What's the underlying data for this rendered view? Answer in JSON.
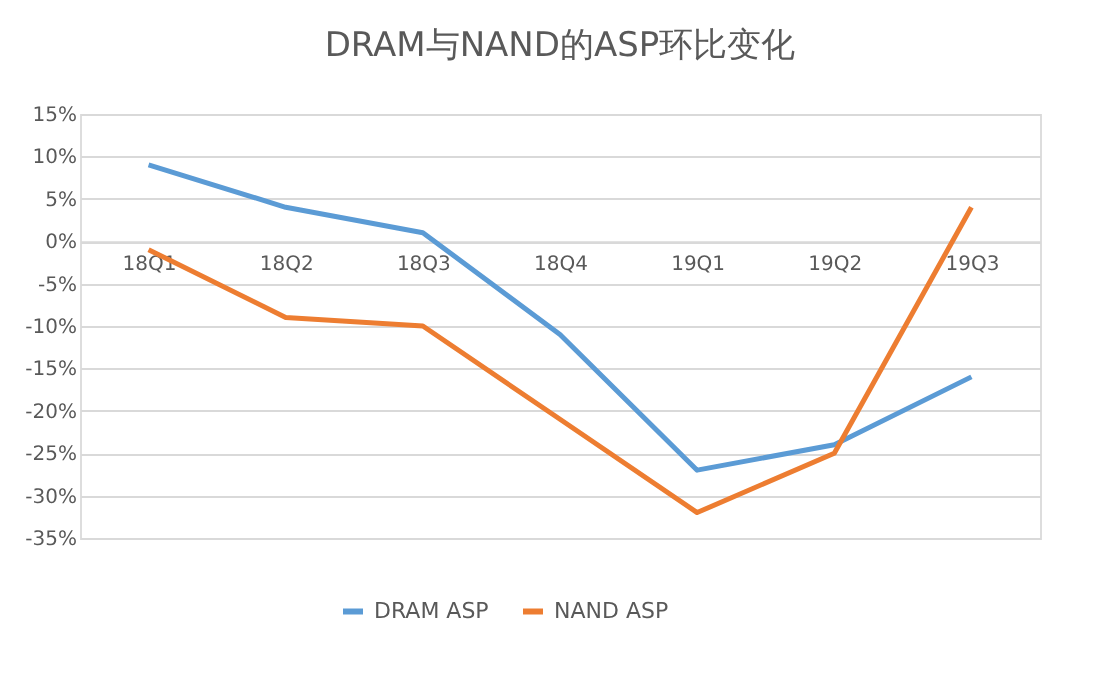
{
  "chart_data": {
    "type": "line",
    "title": "DRAM与NAND的ASP环比变化",
    "categories": [
      "18Q1",
      "18Q2",
      "18Q3",
      "18Q4",
      "19Q1",
      "19Q2",
      "19Q3"
    ],
    "series": [
      {
        "name": "DRAM ASP",
        "color": "#5b9bd5",
        "values": [
          9,
          4,
          1,
          -11,
          -27,
          -24,
          -16
        ]
      },
      {
        "name": "NAND ASP",
        "color": "#ed7d31",
        "values": [
          -1,
          -9,
          -10,
          -21,
          -32,
          -25,
          4
        ]
      }
    ],
    "ylim": [
      -35,
      15
    ],
    "yticks": [
      {
        "value": -35,
        "label": "-35%"
      },
      {
        "value": -30,
        "label": "-30%"
      },
      {
        "value": -25,
        "label": "-25%"
      },
      {
        "value": -20,
        "label": "-20%"
      },
      {
        "value": -15,
        "label": "-15%"
      },
      {
        "value": -10,
        "label": "-10%"
      },
      {
        "value": -5,
        "label": "-5%"
      },
      {
        "value": 0,
        "label": "0%"
      },
      {
        "value": 5,
        "label": "5%"
      },
      {
        "value": 10,
        "label": "10%"
      },
      {
        "value": 15,
        "label": "15%"
      }
    ],
    "grid": "y",
    "legend": "bottom",
    "marker": "none",
    "line_style": "solid"
  }
}
